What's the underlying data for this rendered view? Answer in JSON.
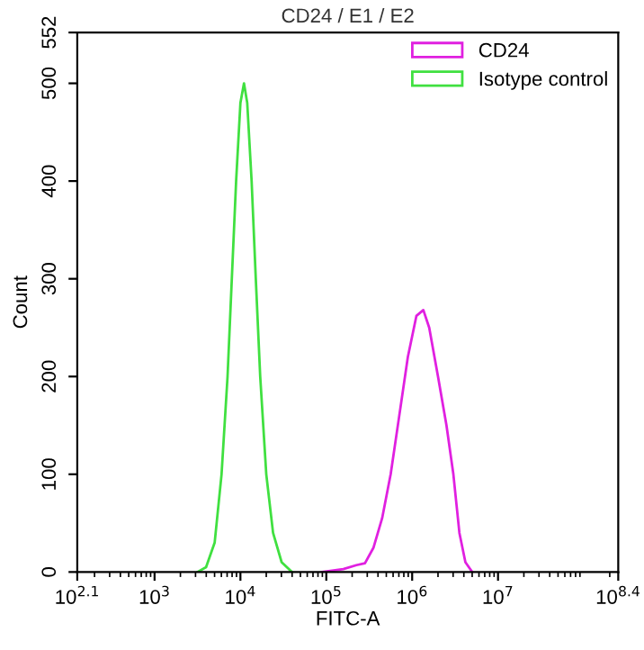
{
  "chart_data": {
    "type": "line",
    "title": "CD24 / E1 / E2",
    "xlabel": "FITC-A",
    "ylabel": "Count",
    "log": "x",
    "legend": "top right",
    "grid": false,
    "marker": "none",
    "line_style": "solid",
    "xlim": [
      125.9,
      251200000
    ],
    "xticks": [
      {
        "value": 125.9,
        "label": "10$^{2.1}$"
      },
      {
        "value": 1000,
        "label": "10$^{3}$"
      },
      {
        "value": 10000,
        "label": "10$^{4}$"
      },
      {
        "value": 100000,
        "label": "10$^{5}$"
      },
      {
        "value": 1000000,
        "label": "10$^{6}$"
      },
      {
        "value": 10000000,
        "label": "10$^{7}$"
      },
      {
        "value": 251200000,
        "label": "10$^{8.4}$"
      }
    ],
    "ylim": [
      0,
      552
    ],
    "yticks": [
      0,
      100,
      200,
      300,
      400,
      500,
      552
    ],
    "series": [
      {
        "name": "CD24",
        "color": "#e020e0",
        "x": [
          89100,
          158000,
          224000,
          282000,
          355000,
          447000,
          562000,
          708000,
          891000,
          1120000,
          1350000,
          1580000,
          2000000,
          2510000,
          3020000,
          3550000,
          4170000,
          5010000
        ],
        "values": [
          0,
          3,
          7,
          9,
          25,
          55,
          100,
          160,
          220,
          262,
          268,
          250,
          200,
          150,
          100,
          40,
          10,
          0
        ]
      },
      {
        "name": "Isotype control",
        "color": "#40e040",
        "x": [
          3160,
          3980,
          5010,
          6030,
          7080,
          7940,
          8910,
          10000,
          11000,
          12000,
          13500,
          15100,
          17000,
          20000,
          24000,
          30200,
          39800
        ],
        "values": [
          0,
          5,
          30,
          100,
          200,
          300,
          400,
          480,
          500,
          480,
          400,
          300,
          200,
          100,
          40,
          10,
          0
        ]
      }
    ]
  }
}
